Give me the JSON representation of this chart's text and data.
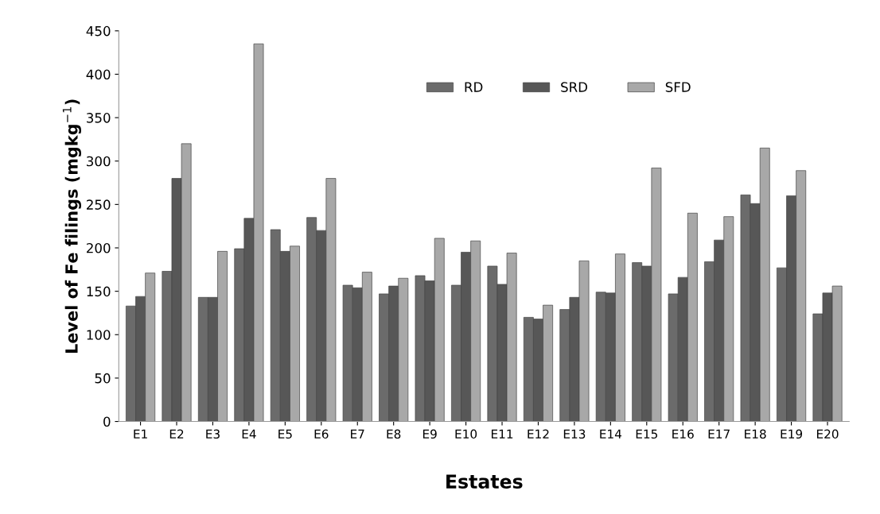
{
  "chart_data": {
    "type": "bar",
    "xlabel": "Estates",
    "ylabel": "Level of Fe filings (mgkg$^{−1}$)",
    "categories": [
      "E1",
      "E2",
      "E3",
      "E4",
      "E5",
      "E6",
      "E7",
      "E8",
      "E9",
      "E10",
      "E11",
      "E12",
      "E13",
      "E14",
      "E15",
      "E16",
      "E17",
      "E18",
      "E19",
      "E20"
    ],
    "series": [
      {
        "name": "RD",
        "color": "#6b6b6b",
        "values": [
          133,
          173,
          143,
          199,
          221,
          235,
          157,
          147,
          168,
          157,
          179,
          120,
          129,
          149,
          183,
          147,
          184,
          261,
          177,
          124
        ]
      },
      {
        "name": "SRD",
        "color": "#575757",
        "values": [
          144,
          280,
          143,
          234,
          196,
          220,
          154,
          156,
          162,
          195,
          158,
          118,
          143,
          148,
          179,
          166,
          209,
          251,
          260,
          148
        ]
      },
      {
        "name": "SFD",
        "color": "#a8a8a8",
        "values": [
          171,
          320,
          196,
          435,
          202,
          280,
          172,
          165,
          211,
          208,
          194,
          134,
          185,
          193,
          292,
          240,
          236,
          315,
          289,
          156
        ]
      }
    ],
    "ylim": [
      0,
      450
    ],
    "yticks": [
      0,
      50,
      100,
      150,
      200,
      250,
      300,
      350,
      400,
      450
    ],
    "grid": false,
    "legend": "top right"
  }
}
